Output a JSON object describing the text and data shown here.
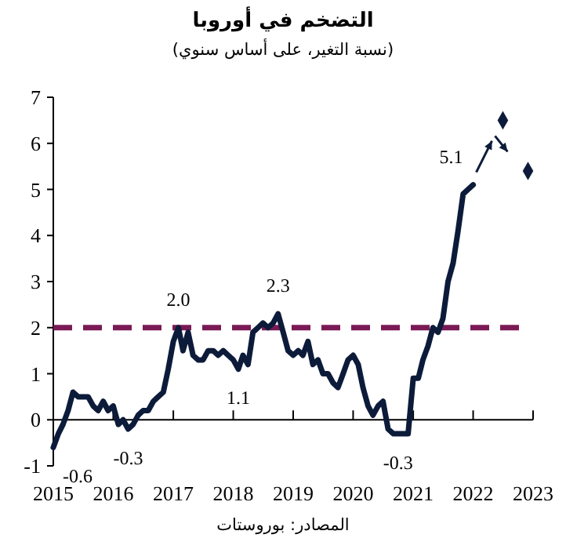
{
  "chart_data": {
    "type": "line",
    "title": "التضخم في أوروبا",
    "subtitle": "(نسبة التغير، على أساس سنوي)",
    "x": [
      "2015-01",
      "2015-02",
      "2015-03",
      "2015-04",
      "2015-05",
      "2015-06",
      "2015-07",
      "2015-08",
      "2015-09",
      "2015-10",
      "2015-11",
      "2015-12",
      "2016-01",
      "2016-02",
      "2016-03",
      "2016-04",
      "2016-05",
      "2016-06",
      "2016-07",
      "2016-08",
      "2016-09",
      "2016-10",
      "2016-11",
      "2016-12",
      "2017-01",
      "2017-02",
      "2017-03",
      "2017-04",
      "2017-05",
      "2017-06",
      "2017-07",
      "2017-08",
      "2017-09",
      "2017-10",
      "2017-11",
      "2017-12",
      "2018-01",
      "2018-02",
      "2018-03",
      "2018-04",
      "2018-05",
      "2018-06",
      "2018-07",
      "2018-08",
      "2018-09",
      "2018-10",
      "2018-11",
      "2018-12",
      "2019-01",
      "2019-02",
      "2019-03",
      "2019-04",
      "2019-05",
      "2019-06",
      "2019-07",
      "2019-08",
      "2019-09",
      "2019-10",
      "2019-11",
      "2019-12",
      "2020-01",
      "2020-02",
      "2020-03",
      "2020-04",
      "2020-05",
      "2020-06",
      "2020-07",
      "2020-08",
      "2020-09",
      "2020-10",
      "2020-11",
      "2020-12",
      "2021-01",
      "2021-02",
      "2021-03",
      "2021-04",
      "2021-05",
      "2021-06",
      "2021-07",
      "2021-08",
      "2021-09",
      "2021-10",
      "2021-11",
      "2021-12",
      "2022-01"
    ],
    "series": [
      {
        "color": "#0d1b3a",
        "values": [
          -0.6,
          -0.3,
          -0.1,
          0.2,
          0.6,
          0.5,
          0.5,
          0.5,
          0.3,
          0.2,
          0.4,
          0.2,
          0.3,
          -0.1,
          0.0,
          -0.2,
          -0.1,
          0.1,
          0.2,
          0.2,
          0.4,
          0.5,
          0.6,
          1.1,
          1.7,
          2.0,
          1.5,
          1.9,
          1.4,
          1.3,
          1.3,
          1.5,
          1.5,
          1.4,
          1.5,
          1.4,
          1.3,
          1.1,
          1.4,
          1.2,
          1.9,
          2.0,
          2.1,
          2.0,
          2.1,
          2.3,
          1.9,
          1.5,
          1.4,
          1.5,
          1.4,
          1.7,
          1.2,
          1.3,
          1.0,
          1.0,
          0.8,
          0.7,
          1.0,
          1.3,
          1.4,
          1.2,
          0.7,
          0.3,
          0.1,
          0.3,
          0.4,
          -0.2,
          -0.3,
          -0.3,
          -0.3,
          -0.3,
          0.9,
          0.9,
          1.3,
          1.6,
          2.0,
          1.9,
          2.2,
          3.0,
          3.4,
          4.1,
          4.9,
          5.0,
          5.1
        ]
      },
      {
        "type": "scatter",
        "color": "#0d1b3a",
        "marker": "diamond",
        "x": [
          "2022-07",
          "2022-12"
        ],
        "values": [
          6.5,
          5.4
        ]
      }
    ],
    "xlim": [
      "2015-01",
      "2023-01"
    ],
    "xticks": [
      {
        "value": "2015-01",
        "label": "2015"
      },
      {
        "value": "2016-01",
        "label": "2016"
      },
      {
        "value": "2017-01",
        "label": "2017"
      },
      {
        "value": "2018-01",
        "label": "2018"
      },
      {
        "value": "2019-01",
        "label": "2019"
      },
      {
        "value": "2020-01",
        "label": "2020"
      },
      {
        "value": "2021-01",
        "label": "2021"
      },
      {
        "value": "2022-01",
        "label": "2022"
      },
      {
        "value": "2023-01",
        "label": "2023"
      }
    ],
    "ylim": [
      -1,
      7
    ],
    "yticks": [
      -1,
      0,
      1,
      2,
      3,
      4,
      5,
      6,
      7
    ],
    "ref_lines": [
      {
        "axis": "y",
        "value": 2,
        "color": "#7a1a55",
        "line_style": "dashed"
      }
    ],
    "annotations": [
      {
        "text": "-0.6",
        "x": "2015-01",
        "y": -0.6
      },
      {
        "text": "-0.3",
        "x": "2016-04",
        "y": -0.2
      },
      {
        "text": "2.0",
        "x": "2017-02",
        "y": 2.0
      },
      {
        "text": "1.1",
        "x": "2018-02",
        "y": 1.1
      },
      {
        "text": "2.3",
        "x": "2018-10",
        "y": 2.3
      },
      {
        "text": "-0.3",
        "x": "2020-10",
        "y": -0.3
      },
      {
        "text": "5.1",
        "x": "2022-01",
        "y": 5.1
      },
      "المصادر: بوروستات"
    ]
  }
}
